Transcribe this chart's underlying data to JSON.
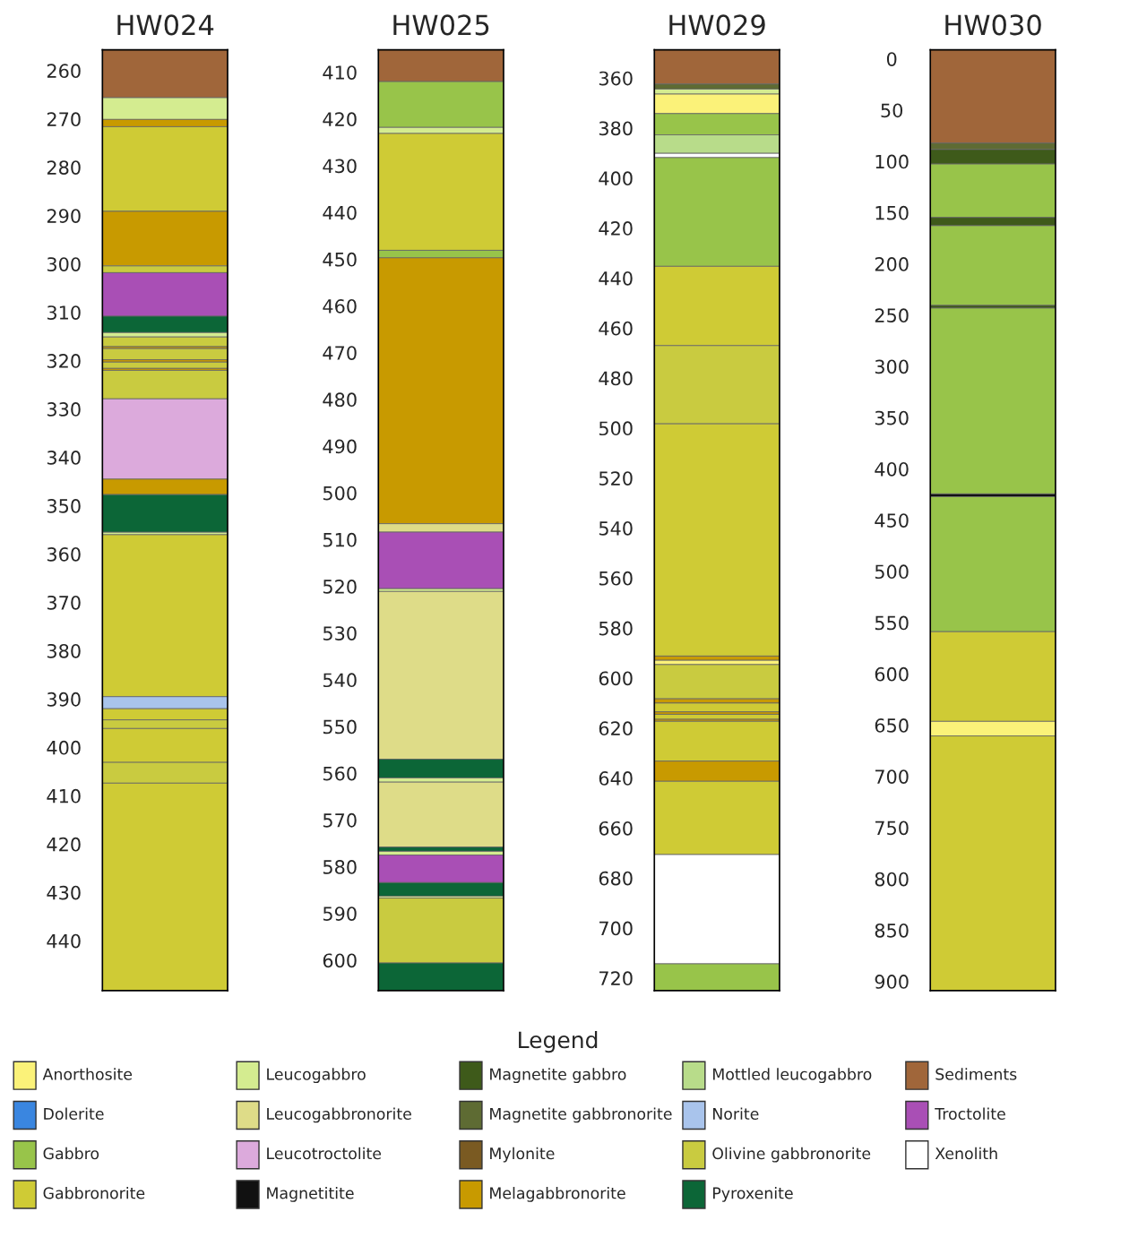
{
  "chart_data": [
    {
      "type": "bar",
      "title": "HW024",
      "categories": [
        null
      ],
      "ylim": [
        450.3,
        255.7
      ],
      "yticks": [
        260,
        270,
        280,
        290,
        300,
        310,
        320,
        330,
        340,
        350,
        360,
        370,
        380,
        390,
        400,
        410,
        420,
        430,
        440
      ],
      "series": [
        {
          "color": "#a0663a",
          "base": [
            255.7
          ],
          "values": [
            9.9
          ]
        },
        {
          "color": "#d4ec90",
          "base": [
            265.6
          ],
          "values": [
            4.5
          ]
        },
        {
          "color": "#c89a00",
          "base": [
            270.1
          ],
          "values": [
            1.5
          ]
        },
        {
          "color": "#cfcb35",
          "base": [
            271.6
          ],
          "values": [
            17.5
          ]
        },
        {
          "color": "#c89a00",
          "base": [
            289.1
          ],
          "values": [
            11.3
          ]
        },
        {
          "color": "#c9cb40",
          "base": [
            300.4
          ],
          "values": [
            1.4
          ]
        },
        {
          "color": "#a94fb5",
          "base": [
            301.8
          ],
          "values": [
            9.0
          ]
        },
        {
          "color": "#0c6637",
          "base": [
            310.8
          ],
          "values": [
            3.4
          ]
        },
        {
          "color": "#d4ec90",
          "base": [
            314.2
          ],
          "values": [
            0.9
          ]
        },
        {
          "color": "#c9cb40",
          "base": [
            315.1
          ],
          "values": [
            2.0
          ]
        },
        {
          "color": "#c89a00",
          "base": [
            317.1
          ],
          "values": [
            0.4
          ]
        },
        {
          "color": "#c9cb40",
          "base": [
            317.5
          ],
          "values": [
            2.3
          ]
        },
        {
          "color": "#c89a00",
          "base": [
            319.8
          ],
          "values": [
            0.5
          ]
        },
        {
          "color": "#c9cb40",
          "base": [
            320.3
          ],
          "values": [
            1.3
          ]
        },
        {
          "color": "#c89a00",
          "base": [
            321.6
          ],
          "values": [
            0.4
          ]
        },
        {
          "color": "#c9cb40",
          "base": [
            322.0
          ],
          "values": [
            5.9
          ]
        },
        {
          "color": "#dcaadc",
          "base": [
            327.9
          ],
          "values": [
            16.6
          ]
        },
        {
          "color": "#c89a00",
          "base": [
            344.5
          ],
          "values": [
            3.2
          ]
        },
        {
          "color": "#0c6637",
          "base": [
            347.7
          ],
          "values": [
            7.8
          ]
        },
        {
          "color": "#d4ec90",
          "base": [
            355.5
          ],
          "values": [
            0.5
          ]
        },
        {
          "color": "#cfcb35",
          "base": [
            356.0
          ],
          "values": [
            33.5
          ]
        },
        {
          "color": "#a9c4ec",
          "base": [
            389.5
          ],
          "values": [
            2.5
          ]
        },
        {
          "color": "#cfcb35",
          "base": [
            392.0
          ],
          "values": [
            2.3
          ]
        },
        {
          "color": "#c9cb40",
          "base": [
            394.3
          ],
          "values": [
            1.8
          ]
        },
        {
          "color": "#cfcb35",
          "base": [
            396.1
          ],
          "values": [
            7.0
          ]
        },
        {
          "color": "#c9cb40",
          "base": [
            403.1
          ],
          "values": [
            4.3
          ]
        },
        {
          "color": "#cfcb35",
          "base": [
            407.4
          ],
          "values": [
            42.9
          ]
        }
      ]
    },
    {
      "type": "bar",
      "title": "HW025",
      "categories": [
        null
      ],
      "ylim": [
        606.5,
        405.2
      ],
      "yticks": [
        410,
        420,
        430,
        440,
        450,
        460,
        470,
        480,
        490,
        500,
        510,
        520,
        530,
        540,
        550,
        560,
        570,
        580,
        590,
        600
      ],
      "series": [
        {
          "color": "#a0663a",
          "base": [
            405.2
          ],
          "values": [
            6.8
          ]
        },
        {
          "color": "#98c44a",
          "base": [
            412.0
          ],
          "values": [
            9.8
          ]
        },
        {
          "color": "#d4ec90",
          "base": [
            421.8
          ],
          "values": [
            1.3
          ]
        },
        {
          "color": "#cfcb35",
          "base": [
            423.1
          ],
          "values": [
            25.0
          ]
        },
        {
          "color": "#98c44a",
          "base": [
            448.1
          ],
          "values": [
            1.6
          ]
        },
        {
          "color": "#c89a00",
          "base": [
            449.7
          ],
          "values": [
            56.9
          ]
        },
        {
          "color": "#dedc88",
          "base": [
            506.6
          ],
          "values": [
            1.8
          ]
        },
        {
          "color": "#a94fb5",
          "base": [
            508.4
          ],
          "values": [
            12.1
          ]
        },
        {
          "color": "#d4ec90",
          "base": [
            520.5
          ],
          "values": [
            0.6
          ]
        },
        {
          "color": "#dedc88",
          "base": [
            521.1
          ],
          "values": [
            35.9
          ]
        },
        {
          "color": "#0c6637",
          "base": [
            557.0
          ],
          "values": [
            4.0
          ]
        },
        {
          "color": "#d4ec90",
          "base": [
            561.0
          ],
          "values": [
            0.9
          ]
        },
        {
          "color": "#dedc88",
          "base": [
            561.9
          ],
          "values": [
            13.9
          ]
        },
        {
          "color": "#0c6637",
          "base": [
            575.8
          ],
          "values": [
            0.9
          ]
        },
        {
          "color": "#d4ec90",
          "base": [
            576.7
          ],
          "values": [
            0.8
          ]
        },
        {
          "color": "#a94fb5",
          "base": [
            577.5
          ],
          "values": [
            5.9
          ]
        },
        {
          "color": "#0c6637",
          "base": [
            583.4
          ],
          "values": [
            2.9
          ]
        },
        {
          "color": "#d4ec90",
          "base": [
            586.3
          ],
          "values": [
            0.4
          ]
        },
        {
          "color": "#c9cb40",
          "base": [
            586.7
          ],
          "values": [
            13.9
          ]
        },
        {
          "color": "#0c6637",
          "base": [
            600.6
          ],
          "values": [
            5.9
          ]
        }
      ]
    },
    {
      "type": "bar",
      "title": "HW029",
      "categories": [
        null
      ],
      "ylim": [
        725.0,
        348.7
      ],
      "yticks": [
        360,
        380,
        400,
        420,
        440,
        460,
        480,
        500,
        520,
        540,
        560,
        580,
        600,
        620,
        640,
        660,
        680,
        700,
        720
      ],
      "series": [
        {
          "color": "#a0663a",
          "base": [
            348.7
          ],
          "values": [
            13.7
          ]
        },
        {
          "color": "#5e6b33",
          "base": [
            362.4
          ],
          "values": [
            2.0
          ]
        },
        {
          "color": "#d4ec90",
          "base": [
            364.4
          ],
          "values": [
            2.0
          ]
        },
        {
          "color": "#fbf279",
          "base": [
            366.4
          ],
          "values": [
            7.8
          ]
        },
        {
          "color": "#98c44a",
          "base": [
            374.2
          ],
          "values": [
            8.5
          ]
        },
        {
          "color": "#b8dc8a",
          "base": [
            382.7
          ],
          "values": [
            7.4
          ]
        },
        {
          "color": "#ffffff",
          "base": [
            390.1
          ],
          "values": [
            1.7
          ]
        },
        {
          "color": "#98c44a",
          "base": [
            391.8
          ],
          "values": [
            43.5
          ]
        },
        {
          "color": "#cfcb35",
          "base": [
            435.3
          ],
          "values": [
            31.7
          ]
        },
        {
          "color": "#c9cb40",
          "base": [
            467.0
          ],
          "values": [
            31.3
          ]
        },
        {
          "color": "#cfcb35",
          "base": [
            498.3
          ],
          "values": [
            92.9
          ]
        },
        {
          "color": "#c89a00",
          "base": [
            591.2
          ],
          "values": [
            1.7
          ]
        },
        {
          "color": "#fbf279",
          "base": [
            592.9
          ],
          "values": [
            1.7
          ]
        },
        {
          "color": "#c9cb40",
          "base": [
            594.6
          ],
          "values": [
            13.7
          ]
        },
        {
          "color": "#c89a00",
          "base": [
            608.3
          ],
          "values": [
            1.7
          ]
        },
        {
          "color": "#cfcb35",
          "base": [
            610.0
          ],
          "values": [
            3.5
          ]
        },
        {
          "color": "#c89a00",
          "base": [
            613.5
          ],
          "values": [
            1.0
          ]
        },
        {
          "color": "#cfcb35",
          "base": [
            614.5
          ],
          "values": [
            2.0
          ]
        },
        {
          "color": "#c89a00",
          "base": [
            616.5
          ],
          "values": [
            0.8
          ]
        },
        {
          "color": "#cfcb35",
          "base": [
            617.3
          ],
          "values": [
            15.9
          ]
        },
        {
          "color": "#c89a00",
          "base": [
            633.2
          ],
          "values": [
            8.1
          ]
        },
        {
          "color": "#cfcb35",
          "base": [
            641.3
          ],
          "values": [
            29.3
          ]
        },
        {
          "color": "#ffffff",
          "base": [
            670.6
          ],
          "values": [
            43.7
          ]
        },
        {
          "color": "#98c44a",
          "base": [
            714.3
          ],
          "values": [
            10.7
          ]
        }
      ]
    },
    {
      "type": "bar",
      "title": "HW030",
      "categories": [
        null
      ],
      "ylim": [
        908.9,
        -8.8
      ],
      "yticks": [
        0,
        50,
        100,
        150,
        200,
        250,
        300,
        350,
        400,
        450,
        500,
        550,
        600,
        650,
        700,
        750,
        800,
        850,
        900
      ],
      "series": [
        {
          "color": "#a0663a",
          "base": [
            -8.8
          ],
          "values": [
            91.0
          ]
        },
        {
          "color": "#5e6b33",
          "base": [
            82.2
          ],
          "values": [
            6.2
          ]
        },
        {
          "color": "#3e5a1a",
          "base": [
            88.4
          ],
          "values": [
            14.2
          ]
        },
        {
          "color": "#98c44a",
          "base": [
            102.6
          ],
          "values": [
            52.1
          ]
        },
        {
          "color": "#3e5a1a",
          "base": [
            154.7
          ],
          "values": [
            8.0
          ]
        },
        {
          "color": "#98c44a",
          "base": [
            162.7
          ],
          "values": [
            77.8
          ]
        },
        {
          "color": "#3e5a1a",
          "base": [
            240.5
          ],
          "values": [
            2.6
          ]
        },
        {
          "color": "#98c44a",
          "base": [
            243.1
          ],
          "values": [
            181.3
          ]
        },
        {
          "color": "#111111",
          "base": [
            424.4
          ],
          "values": [
            2.7
          ]
        },
        {
          "color": "#98c44a",
          "base": [
            427.1
          ],
          "values": [
            131.7
          ]
        },
        {
          "color": "#cfcb35",
          "base": [
            558.8
          ],
          "values": [
            87.5
          ]
        },
        {
          "color": "#fbf279",
          "base": [
            646.3
          ],
          "values": [
            14.2
          ]
        },
        {
          "color": "#cfcb35",
          "base": [
            660.5
          ],
          "values": [
            248.4
          ]
        }
      ]
    },
    {
      "type": "other",
      "title": "Legend",
      "categories": [
        "Anorthosite",
        "Dolerite",
        "Gabbro",
        "Gabbronorite",
        "Leucogabbro",
        "Leucogabbronorite",
        "Leucotroctolite",
        "Magnetitite",
        "Magnetite gabbro",
        "Magnetite gabbronorite",
        "Mylonite",
        "Melagabbronorite",
        "Mottled leucogabbro",
        "Norite",
        "Olivine gabbronorite",
        "Pyroxenite",
        "Sediments",
        "Troctolite",
        "Xenolith"
      ],
      "colors": [
        "#fbf279",
        "#3a86e0",
        "#98c44a",
        "#cfcb35",
        "#d4ec90",
        "#dedc88",
        "#dcaadc",
        "#111111",
        "#3e5a1a",
        "#5e6b33",
        "#7a5a22",
        "#c89a00",
        "#b8dc8a",
        "#a9c4ec",
        "#c9cb40",
        "#0c6637",
        "#a0663a",
        "#a94fb5",
        "#ffffff"
      ]
    }
  ]
}
